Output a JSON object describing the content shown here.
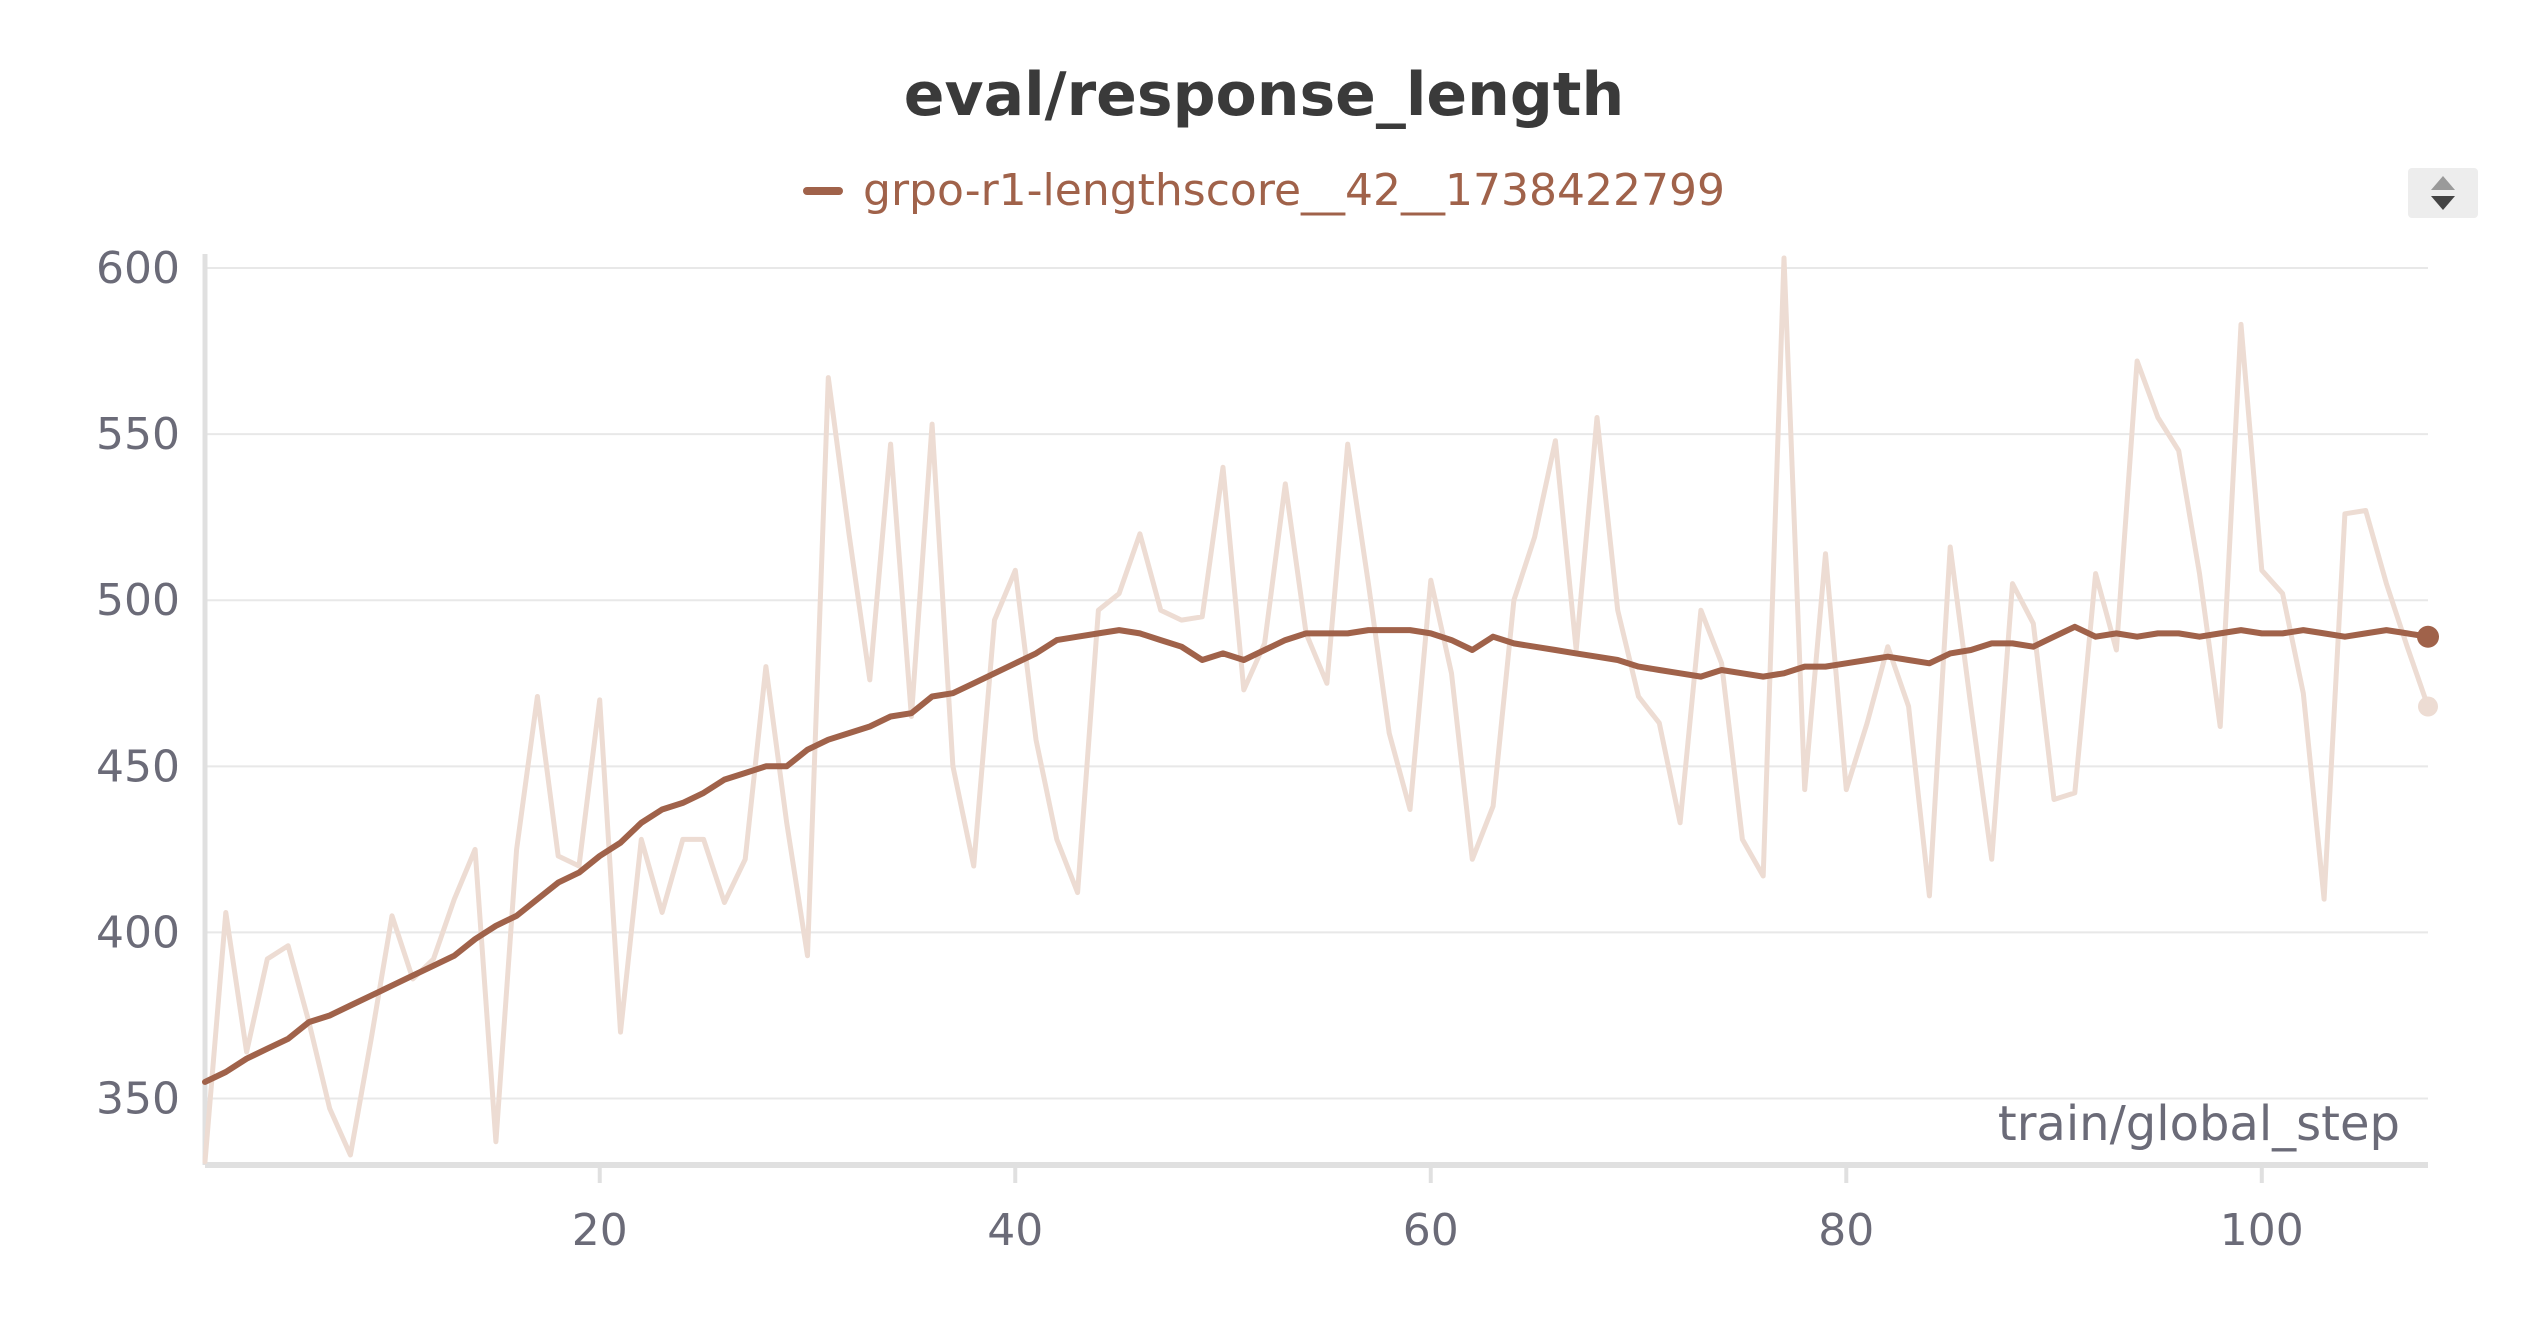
{
  "chart_data": {
    "type": "line",
    "title": "eval/response_length",
    "xlabel": "train/global_step",
    "ylabel": "",
    "xlim": [
      1,
      108
    ],
    "ylim": [
      330,
      603
    ],
    "xticks": [
      20,
      40,
      60,
      80,
      100
    ],
    "yticks": [
      350,
      400,
      450,
      500,
      550,
      600
    ],
    "grid": true,
    "legend_position": "top-center",
    "colors": {
      "series": "#a0624a",
      "raw": "#eddcd3",
      "grid": "#e8e8e8",
      "axis": "#e0e0e0"
    },
    "series": [
      {
        "name": "grpo-r1-lengthscore__42__1738422799",
        "smoothed": true,
        "x": [
          1,
          2,
          3,
          4,
          5,
          6,
          7,
          8,
          9,
          10,
          11,
          12,
          13,
          14,
          15,
          16,
          17,
          18,
          19,
          20,
          21,
          22,
          23,
          24,
          25,
          26,
          27,
          28,
          29,
          30,
          31,
          32,
          33,
          34,
          35,
          36,
          37,
          38,
          39,
          40,
          41,
          42,
          43,
          44,
          45,
          46,
          47,
          48,
          49,
          50,
          51,
          52,
          53,
          54,
          55,
          56,
          57,
          58,
          59,
          60,
          61,
          62,
          63,
          64,
          65,
          66,
          67,
          68,
          69,
          70,
          71,
          72,
          73,
          74,
          75,
          76,
          77,
          78,
          79,
          80,
          81,
          82,
          83,
          84,
          85,
          86,
          87,
          88,
          89,
          90,
          91,
          92,
          93,
          94,
          95,
          96,
          97,
          98,
          99,
          100,
          101,
          102,
          103,
          104,
          105,
          106,
          107,
          108
        ],
        "values": [
          355,
          358,
          362,
          365,
          368,
          373,
          375,
          378,
          381,
          384,
          387,
          390,
          393,
          398,
          402,
          405,
          410,
          415,
          418,
          423,
          427,
          433,
          437,
          439,
          442,
          446,
          448,
          450,
          450,
          455,
          458,
          460,
          462,
          465,
          466,
          471,
          472,
          475,
          478,
          481,
          484,
          488,
          489,
          490,
          491,
          490,
          488,
          486,
          482,
          484,
          482,
          485,
          488,
          490,
          490,
          490,
          491,
          491,
          491,
          490,
          488,
          485,
          489,
          487,
          486,
          485,
          484,
          483,
          482,
          480,
          479,
          478,
          477,
          479,
          478,
          477,
          478,
          480,
          480,
          481,
          482,
          483,
          482,
          481,
          484,
          485,
          487,
          487,
          486,
          489,
          492,
          489,
          490,
          489,
          490,
          490,
          489,
          490,
          491,
          490,
          490,
          491,
          490,
          489,
          490,
          491,
          490,
          489
        ]
      },
      {
        "name": "",
        "smoothed": false,
        "x": [
          1,
          2,
          3,
          4,
          5,
          6,
          7,
          8,
          9,
          10,
          11,
          12,
          13,
          14,
          15,
          16,
          17,
          18,
          19,
          20,
          21,
          22,
          23,
          24,
          25,
          26,
          27,
          28,
          29,
          30,
          31,
          32,
          33,
          34,
          35,
          36,
          37,
          38,
          39,
          40,
          41,
          42,
          43,
          44,
          45,
          46,
          47,
          48,
          49,
          50,
          51,
          52,
          53,
          54,
          55,
          56,
          57,
          58,
          59,
          60,
          61,
          62,
          63,
          64,
          65,
          66,
          67,
          68,
          69,
          70,
          71,
          72,
          73,
          74,
          75,
          76,
          77,
          78,
          79,
          80,
          81,
          82,
          83,
          84,
          85,
          86,
          87,
          88,
          89,
          90,
          91,
          92,
          93,
          94,
          95,
          96,
          97,
          98,
          99,
          100,
          101,
          102,
          103,
          104,
          105,
          106,
          107,
          108
        ],
        "values": [
          331,
          406,
          364,
          392,
          396,
          373,
          347,
          333,
          368,
          405,
          386,
          392,
          410,
          425,
          337,
          425,
          471,
          423,
          420,
          470,
          370,
          428,
          406,
          428,
          428,
          409,
          422,
          480,
          433,
          393,
          567,
          520,
          476,
          547,
          465,
          553,
          450,
          420,
          494,
          509,
          458,
          428,
          412,
          497,
          502,
          520,
          497,
          494,
          495,
          540,
          473,
          487,
          535,
          490,
          475,
          547,
          505,
          460,
          437,
          506,
          478,
          422,
          438,
          500,
          519,
          548,
          485,
          555,
          497,
          471,
          463,
          433,
          497,
          481,
          428,
          417,
          603,
          443,
          514,
          443,
          463,
          486,
          468,
          411,
          516,
          468,
          422,
          505,
          493,
          440,
          442,
          508,
          485,
          572,
          555,
          545,
          508,
          462,
          583,
          509,
          502,
          472,
          410,
          526,
          527,
          505,
          486,
          468
        ]
      }
    ]
  }
}
